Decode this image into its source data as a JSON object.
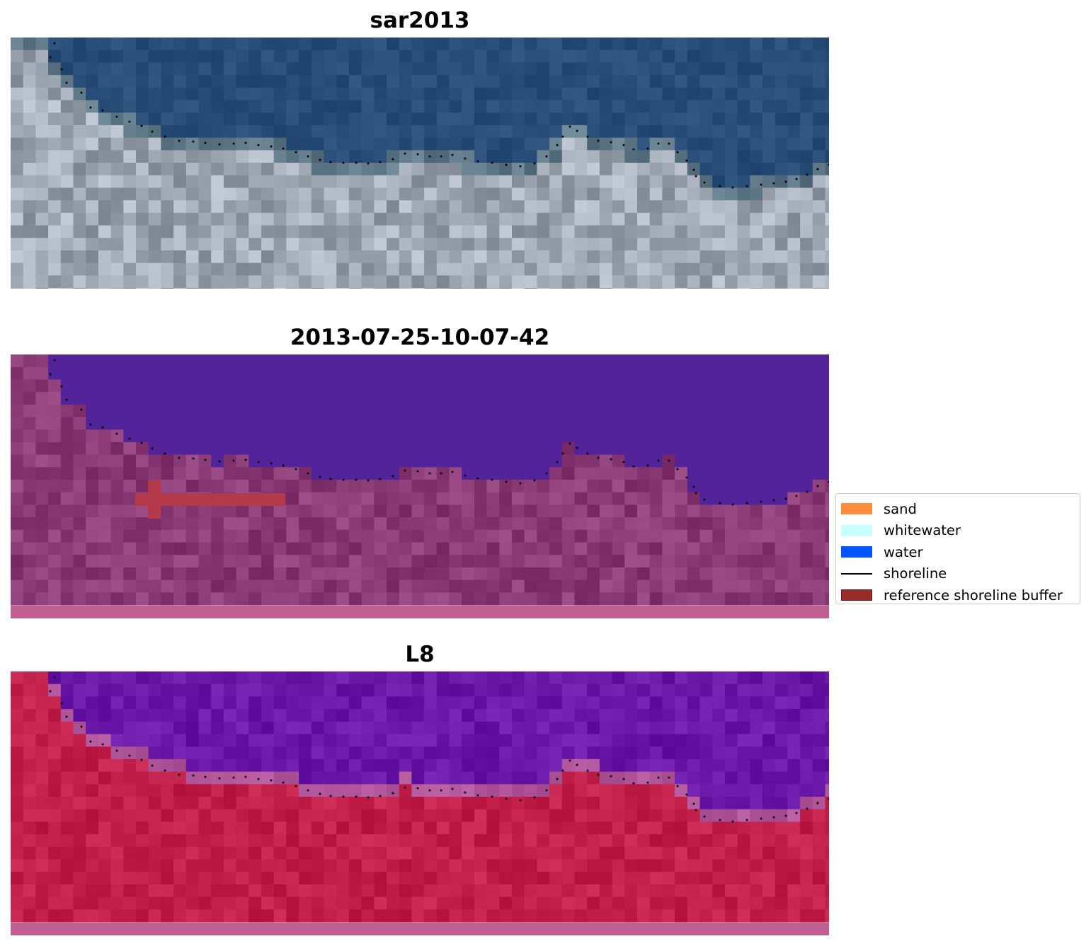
{
  "panels": [
    {
      "title": "sar2013",
      "kind": "rgb"
    },
    {
      "title": "2013-07-25-10-07-42",
      "kind": "classified"
    },
    {
      "title": "L8",
      "kind": "index"
    }
  ],
  "legend": {
    "items": [
      {
        "label": "sand",
        "color": "#ff8c3c",
        "type": "patch"
      },
      {
        "label": "whitewater",
        "color": "#c8ffff",
        "type": "patch"
      },
      {
        "label": "water",
        "color": "#0055ff",
        "type": "patch"
      },
      {
        "label": "shoreline",
        "color": "#000000",
        "type": "line"
      },
      {
        "label": "reference shoreline buffer",
        "color": "#992b2b",
        "type": "patch"
      }
    ]
  },
  "colors": {
    "water_rgb": "#284e78",
    "sand_rgb": "#a0a8b4",
    "class_water": "#53239a",
    "class_land": "#8a3a74",
    "buffer": "#b43a4a",
    "index_water": "#6a18a8",
    "index_land": "#c0204a",
    "index_edge": "#b0559a",
    "nodata_strip": "#c06090"
  }
}
